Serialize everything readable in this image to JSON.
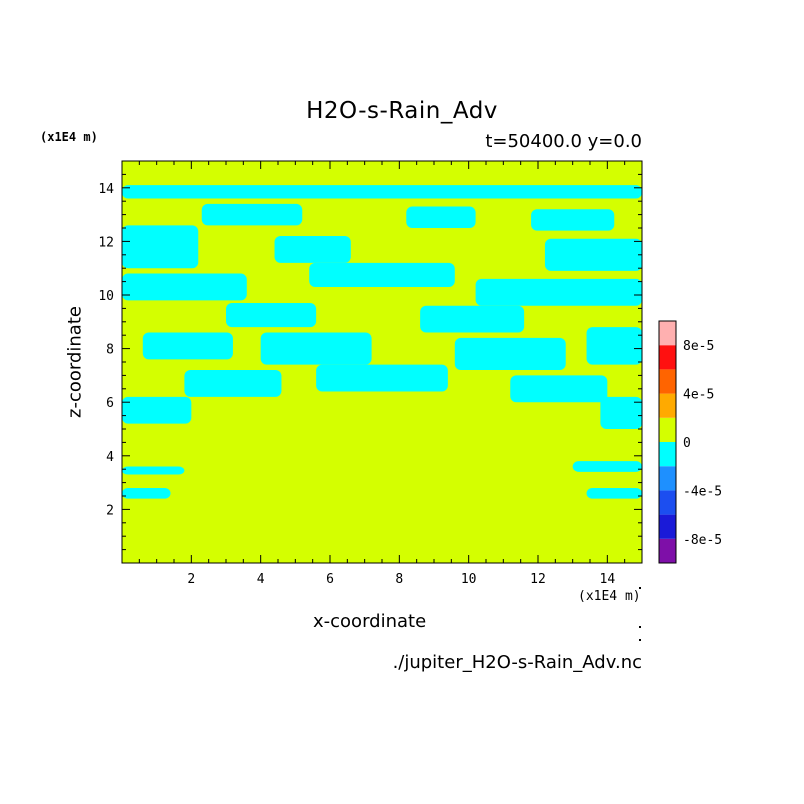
{
  "chart_data": {
    "type": "heatmap",
    "title": "H2O-s-Rain_Adv",
    "subtitle": "t=50400.0 y=0.0",
    "xlabel": "x-coordinate",
    "ylabel": "z-coordinate",
    "x_unit": "(x1E4 m)",
    "y_unit": "(x1E4 m)",
    "xlim": [
      0,
      15
    ],
    "ylim": [
      0,
      15
    ],
    "x_ticks": [
      2,
      4,
      6,
      8,
      10,
      12,
      14
    ],
    "y_ticks": [
      2,
      4,
      6,
      8,
      10,
      12,
      14
    ],
    "colorbar": {
      "levels": [
        -0.0001,
        -8e-05,
        -6e-05,
        -4e-05,
        -2e-05,
        0,
        2e-05,
        4e-05,
        6e-05,
        8e-05,
        0.0001
      ],
      "colors": [
        "#7e0fa8",
        "#1a1ad8",
        "#1c4ef0",
        "#1e90ff",
        "#00ffff",
        "#d4ff00",
        "#ffaa00",
        "#ff6400",
        "#ff1010",
        "#ffb0b0"
      ],
      "tick_labels": [
        {
          "value": 8e-05,
          "label": "8e-5"
        },
        {
          "value": 4e-05,
          "label": "4e-5"
        },
        {
          "value": 0,
          "label": "0"
        },
        {
          "value": -4e-05,
          "label": "-4e-5"
        },
        {
          "value": -8e-05,
          "label": "-8e-5"
        }
      ]
    },
    "background_color": "#d4ff00",
    "negative_color": "#00ffff",
    "negative_regions": [
      {
        "x": [
          0.0,
          15.0
        ],
        "z": [
          13.6,
          14.1
        ]
      },
      {
        "x": [
          2.3,
          5.2
        ],
        "z": [
          12.6,
          13.4
        ]
      },
      {
        "x": [
          8.2,
          10.2
        ],
        "z": [
          12.5,
          13.3
        ]
      },
      {
        "x": [
          11.8,
          14.2
        ],
        "z": [
          12.4,
          13.2
        ]
      },
      {
        "x": [
          0.0,
          2.2
        ],
        "z": [
          11.0,
          12.6
        ]
      },
      {
        "x": [
          4.4,
          6.6
        ],
        "z": [
          11.2,
          12.2
        ]
      },
      {
        "x": [
          12.2,
          15.0
        ],
        "z": [
          10.9,
          12.1
        ]
      },
      {
        "x": [
          0.0,
          3.6
        ],
        "z": [
          9.8,
          10.8
        ]
      },
      {
        "x": [
          5.4,
          9.6
        ],
        "z": [
          10.3,
          11.2
        ]
      },
      {
        "x": [
          10.2,
          15.0
        ],
        "z": [
          9.6,
          10.6
        ]
      },
      {
        "x": [
          3.0,
          5.6
        ],
        "z": [
          8.8,
          9.7
        ]
      },
      {
        "x": [
          8.6,
          11.6
        ],
        "z": [
          8.6,
          9.6
        ]
      },
      {
        "x": [
          0.6,
          3.2
        ],
        "z": [
          7.6,
          8.6
        ]
      },
      {
        "x": [
          4.0,
          7.2
        ],
        "z": [
          7.4,
          8.6
        ]
      },
      {
        "x": [
          9.6,
          12.8
        ],
        "z": [
          7.2,
          8.4
        ]
      },
      {
        "x": [
          13.4,
          15.0
        ],
        "z": [
          7.4,
          8.8
        ]
      },
      {
        "x": [
          1.8,
          4.6
        ],
        "z": [
          6.2,
          7.2
        ]
      },
      {
        "x": [
          5.6,
          9.4
        ],
        "z": [
          6.4,
          7.4
        ]
      },
      {
        "x": [
          11.2,
          14.0
        ],
        "z": [
          6.0,
          7.0
        ]
      },
      {
        "x": [
          0.0,
          2.0
        ],
        "z": [
          5.2,
          6.2
        ]
      },
      {
        "x": [
          13.8,
          15.0
        ],
        "z": [
          5.0,
          6.2
        ]
      },
      {
        "x": [
          0.0,
          1.8
        ],
        "z": [
          3.3,
          3.6
        ]
      },
      {
        "x": [
          0.0,
          1.4
        ],
        "z": [
          2.4,
          2.8
        ]
      },
      {
        "x": [
          13.0,
          15.0
        ],
        "z": [
          3.4,
          3.8
        ]
      },
      {
        "x": [
          13.4,
          15.0
        ],
        "z": [
          2.4,
          2.8
        ]
      }
    ],
    "filename": "./jupiter_H2O-s-Rain_Adv.nc"
  }
}
